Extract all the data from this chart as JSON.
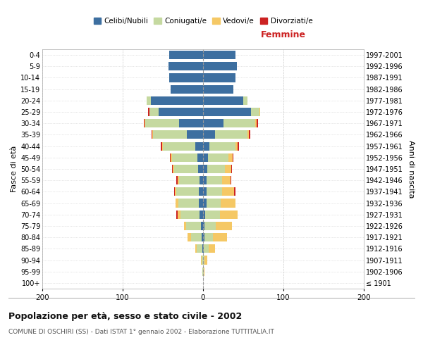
{
  "age_groups": [
    "100+",
    "95-99",
    "90-94",
    "85-89",
    "80-84",
    "75-79",
    "70-74",
    "65-69",
    "60-64",
    "55-59",
    "50-54",
    "45-49",
    "40-44",
    "35-39",
    "30-34",
    "25-29",
    "20-24",
    "15-19",
    "10-14",
    "5-9",
    "0-4"
  ],
  "birth_years": [
    "≤ 1901",
    "1902-1906",
    "1907-1911",
    "1912-1916",
    "1917-1921",
    "1922-1926",
    "1927-1931",
    "1932-1936",
    "1937-1941",
    "1942-1946",
    "1947-1951",
    "1952-1956",
    "1957-1961",
    "1962-1966",
    "1967-1971",
    "1972-1976",
    "1977-1981",
    "1982-1986",
    "1987-1991",
    "1992-1996",
    "1997-2001"
  ],
  "male": {
    "celibi": [
      0,
      0,
      0,
      1,
      2,
      3,
      4,
      5,
      5,
      4,
      6,
      7,
      10,
      20,
      30,
      55,
      65,
      40,
      42,
      43,
      42
    ],
    "coniugati": [
      0,
      1,
      2,
      7,
      13,
      18,
      24,
      26,
      28,
      26,
      30,
      32,
      40,
      42,
      42,
      12,
      5,
      0,
      0,
      0,
      0
    ],
    "vedovi": [
      0,
      0,
      1,
      2,
      4,
      3,
      4,
      3,
      2,
      2,
      2,
      1,
      1,
      1,
      1,
      0,
      0,
      0,
      0,
      0,
      0
    ],
    "divorziati": [
      0,
      0,
      0,
      0,
      0,
      0,
      1,
      0,
      1,
      1,
      1,
      1,
      2,
      1,
      1,
      1,
      0,
      0,
      0,
      0,
      0
    ]
  },
  "female": {
    "nubili": [
      0,
      0,
      0,
      1,
      2,
      2,
      3,
      4,
      4,
      4,
      5,
      6,
      8,
      15,
      25,
      60,
      50,
      38,
      40,
      42,
      40
    ],
    "coniugate": [
      0,
      1,
      2,
      6,
      10,
      14,
      18,
      18,
      20,
      20,
      22,
      26,
      32,
      40,
      40,
      10,
      5,
      0,
      0,
      0,
      0
    ],
    "vedove": [
      0,
      1,
      3,
      8,
      18,
      20,
      22,
      18,
      15,
      10,
      8,
      5,
      3,
      2,
      2,
      1,
      0,
      0,
      0,
      0,
      0
    ],
    "divorziate": [
      0,
      0,
      0,
      0,
      0,
      0,
      0,
      0,
      1,
      1,
      1,
      1,
      2,
      2,
      1,
      0,
      0,
      0,
      0,
      0,
      0
    ]
  },
  "colors": {
    "celibi": "#3d6fa0",
    "coniugati": "#c5d9a0",
    "vedovi": "#f5c865",
    "divorziati": "#cc2222"
  },
  "xlim": 200,
  "title": "Popolazione per età, sesso e stato civile - 2002",
  "subtitle": "COMUNE DI OSCHIRI (SS) - Dati ISTAT 1° gennaio 2002 - Elaborazione TUTTITALIA.IT",
  "ylabel_left": "Fasce di età",
  "ylabel_right": "Anni di nascita",
  "xlabel_right": "Femmine",
  "legend_labels": [
    "Celibi/Nubili",
    "Coniugati/e",
    "Vedovi/e",
    "Divorziati/e"
  ],
  "bg_color": "#ffffff",
  "grid_color": "#cccccc",
  "spine_color": "#aaaaaa"
}
